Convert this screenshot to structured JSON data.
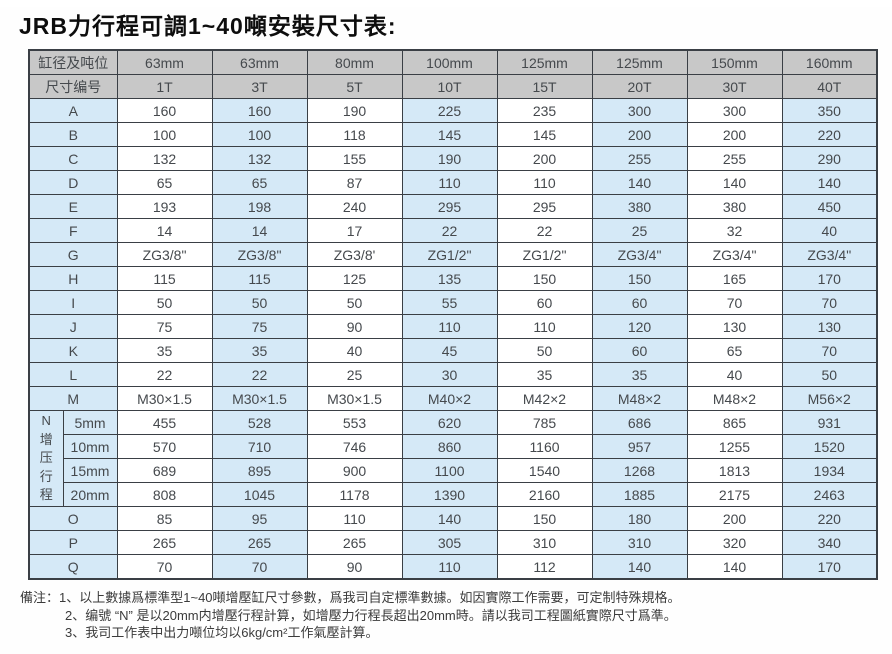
{
  "page_title": "JRB力行程可調1~40噸安裝尺寸表:",
  "colors": {
    "header_bg": "#c8c8c8",
    "label_bg": "#d5e9f7",
    "alt_column_bg": "#d5e9f7",
    "border": "#3a3f45"
  },
  "table": {
    "header_rows": [
      {
        "label": "缸径及吨位",
        "values": [
          "63mm",
          "63mm",
          "80mm",
          "100mm",
          "125mm",
          "125mm",
          "150mm",
          "160mm"
        ]
      },
      {
        "label": "尺寸编号",
        "values": [
          "1T",
          "3T",
          "5T",
          "10T",
          "15T",
          "20T",
          "30T",
          "40T"
        ]
      }
    ],
    "rows": [
      {
        "label": "A",
        "values": [
          "160",
          "160",
          "190",
          "225",
          "235",
          "300",
          "300",
          "350"
        ]
      },
      {
        "label": "B",
        "values": [
          "100",
          "100",
          "118",
          "145",
          "145",
          "200",
          "200",
          "220"
        ]
      },
      {
        "label": "C",
        "values": [
          "132",
          "132",
          "155",
          "190",
          "200",
          "255",
          "255",
          "290"
        ]
      },
      {
        "label": "D",
        "values": [
          "65",
          "65",
          "87",
          "110",
          "110",
          "140",
          "140",
          "140"
        ]
      },
      {
        "label": "E",
        "values": [
          "193",
          "198",
          "240",
          "295",
          "295",
          "380",
          "380",
          "450"
        ]
      },
      {
        "label": "F",
        "values": [
          "14",
          "14",
          "17",
          "22",
          "22",
          "25",
          "32",
          "40"
        ]
      },
      {
        "label": "G",
        "values": [
          "ZG3/8\"",
          "ZG3/8\"",
          "ZG3/8'",
          "ZG1/2\"",
          "ZG1/2\"",
          "ZG3/4\"",
          "ZG3/4\"",
          "ZG3/4\""
        ]
      },
      {
        "label": "H",
        "values": [
          "115",
          "115",
          "125",
          "135",
          "150",
          "150",
          "165",
          "170"
        ]
      },
      {
        "label": "I",
        "values": [
          "50",
          "50",
          "50",
          "55",
          "60",
          "60",
          "70",
          "70"
        ]
      },
      {
        "label": "J",
        "values": [
          "75",
          "75",
          "90",
          "110",
          "110",
          "120",
          "130",
          "130"
        ]
      },
      {
        "label": "K",
        "values": [
          "35",
          "35",
          "40",
          "45",
          "50",
          "60",
          "65",
          "70"
        ]
      },
      {
        "label": "L",
        "values": [
          "22",
          "22",
          "25",
          "30",
          "35",
          "35",
          "40",
          "50"
        ]
      },
      {
        "label": "M",
        "values": [
          "M30×1.5",
          "M30×1.5",
          "M30×1.5",
          "M40×2",
          "M42×2",
          "M48×2",
          "M48×2",
          "M56×2"
        ]
      }
    ],
    "n_group": {
      "label": "N增压行程",
      "sub_rows": [
        {
          "label": "5mm",
          "values": [
            "455",
            "528",
            "553",
            "620",
            "785",
            "686",
            "865",
            "931"
          ]
        },
        {
          "label": "10mm",
          "values": [
            "570",
            "710",
            "746",
            "860",
            "1160",
            "957",
            "1255",
            "1520"
          ]
        },
        {
          "label": "15mm",
          "values": [
            "689",
            "895",
            "900",
            "1100",
            "1540",
            "1268",
            "1813",
            "1934"
          ]
        },
        {
          "label": "20mm",
          "values": [
            "808",
            "1045",
            "1178",
            "1390",
            "2160",
            "1885",
            "2175",
            "2463"
          ]
        }
      ]
    },
    "tail_rows": [
      {
        "label": "O",
        "values": [
          "85",
          "95",
          "110",
          "140",
          "150",
          "180",
          "200",
          "220"
        ]
      },
      {
        "label": "P",
        "values": [
          "265",
          "265",
          "265",
          "305",
          "310",
          "310",
          "320",
          "340"
        ]
      },
      {
        "label": "Q",
        "values": [
          "70",
          "70",
          "90",
          "110",
          "112",
          "140",
          "140",
          "170"
        ]
      }
    ]
  },
  "notes": {
    "prefix": "備注：",
    "items": [
      "1、以上數據爲標準型1~40噸增壓缸尺寸參數，爲我司自定標準數據。如因實際工作需要，可定制特殊規格。",
      "2、编號 “N” 是以20mm内增壓行程計算，如增壓力行程長超出20mm時。請以我司工程圖紙實際尺寸爲準。",
      "3、我司工作表中出力噸位均以6kg/cm²工作氣壓計算。"
    ]
  }
}
